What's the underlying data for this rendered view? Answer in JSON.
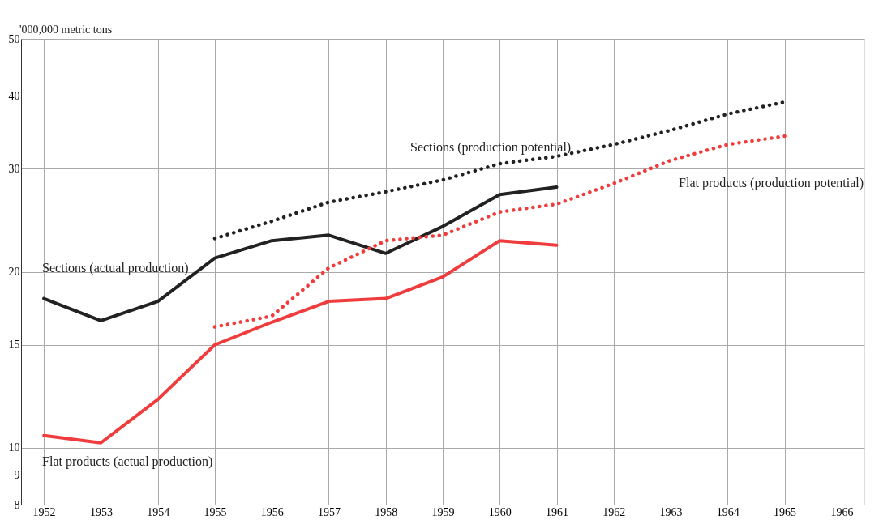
{
  "chart_data": {
    "type": "line",
    "ylabel": "'000,000 metric tons",
    "log": true,
    "grid": true,
    "legend": false,
    "marker": "none",
    "x": [
      1952,
      1953,
      1954,
      1955,
      1956,
      1957,
      1958,
      1959,
      1960,
      1961
    ],
    "xlim": [
      1951.6,
      1966.4
    ],
    "xticks": [
      1952,
      1953,
      1954,
      1955,
      1956,
      1957,
      1958,
      1959,
      1960,
      1961,
      1962,
      1963,
      1964,
      1965,
      1966
    ],
    "ylim": [
      8,
      50
    ],
    "yticks": [
      8,
      9,
      10,
      15,
      20,
      30,
      40,
      50
    ],
    "series": [
      {
        "name": "Sections (actual production)",
        "color": "#222222",
        "line_style": "solid",
        "values": [
          18.0,
          16.5,
          17.8,
          21.1,
          22.6,
          23.1,
          21.5,
          23.9,
          27.1,
          27.9
        ]
      },
      {
        "name": "Flat products (actual production)",
        "color": "#f03c3c",
        "line_style": "solid",
        "values": [
          10.5,
          10.2,
          12.1,
          15.0,
          16.4,
          17.8,
          18.0,
          19.6,
          22.6,
          22.2
        ]
      },
      {
        "name": "Sections (production potential)",
        "color": "#222222",
        "line_style": "dotted",
        "x": [
          1955,
          1956,
          1957,
          1958,
          1959,
          1960,
          1961,
          1962,
          1963,
          1964,
          1965
        ],
        "values": [
          22.8,
          24.4,
          26.3,
          27.4,
          28.7,
          30.6,
          31.5,
          33.0,
          34.9,
          37.2,
          39.0
        ]
      },
      {
        "name": "Flat products (production potential)",
        "color": "#f03c3c",
        "line_style": "dotted",
        "x": [
          1955,
          1956,
          1957,
          1958,
          1959,
          1960,
          1961,
          1962,
          1963,
          1964,
          1965
        ],
        "values": [
          16.1,
          16.8,
          20.3,
          22.6,
          23.1,
          25.3,
          26.1,
          28.3,
          31.0,
          33.0,
          34.1
        ]
      }
    ]
  }
}
